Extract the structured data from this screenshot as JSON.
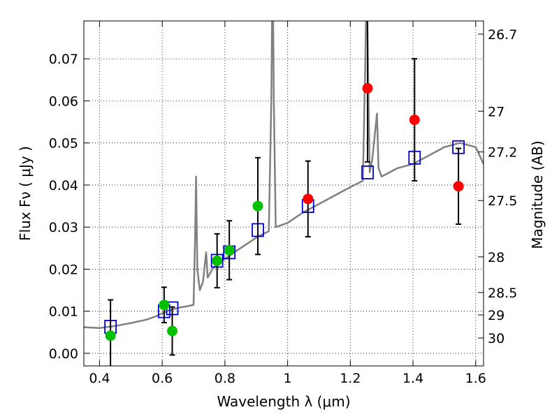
{
  "chart_data": {
    "type": "scatter",
    "title": "",
    "xlabel": "Wavelength  λ (μm)",
    "ylabel": "Flux  Fν  ( μJy )",
    "ylabel_right": "Magnitude (AB)",
    "xlim": [
      0.35,
      1.625
    ],
    "ylim": [
      -0.003,
      0.079
    ],
    "grid": true,
    "x_ticks": [
      0.4,
      0.6,
      0.8,
      1.0,
      1.2,
      1.4,
      1.6
    ],
    "x_tick_labels": [
      "0.4",
      "0.6",
      "0.8",
      "1",
      "1.2",
      "1.4",
      "1.6"
    ],
    "y_ticks": [
      0.0,
      0.01,
      0.02,
      0.03,
      0.04,
      0.05,
      0.06,
      0.07
    ],
    "y_tick_labels": [
      "0.00",
      "0.01",
      "0.02",
      "0.03",
      "0.04",
      "0.05",
      "0.06",
      "0.07"
    ],
    "right_ticks": [
      {
        "label": "26.7",
        "mag": 26.7
      },
      {
        "label": "27",
        "mag": 27.0
      },
      {
        "label": "27.2",
        "mag": 27.2
      },
      {
        "label": "27.5",
        "mag": 27.5
      },
      {
        "label": "28",
        "mag": 28.0
      },
      {
        "label": "28.5",
        "mag": 28.5
      },
      {
        "label": "29",
        "mag": 29.0
      },
      {
        "label": "30",
        "mag": 30.0
      }
    ],
    "colors": {
      "spectrum": "#808080",
      "observed_optical": "#00c000",
      "observed_nir": "#ff0000",
      "model": "#0000cc",
      "errorbar": "#000000"
    },
    "series": [
      {
        "marker": "circle",
        "color": "#00c000",
        "x": [
          0.435,
          0.606,
          0.632,
          0.775,
          0.814,
          0.905
        ],
        "y": [
          0.0042,
          0.0115,
          0.0053,
          0.022,
          0.0245,
          0.035
        ],
        "yerr": [
          0.0085,
          0.0042,
          0.0057,
          0.0064,
          0.007,
          0.0115
        ]
      },
      {
        "marker": "circle",
        "color": "#ff0000",
        "x": [
          1.065,
          1.255,
          1.405,
          1.545
        ],
        "y": [
          0.0367,
          0.063,
          0.0555,
          0.0397
        ],
        "yerr": [
          0.009,
          0.0175,
          0.0145,
          0.009
        ]
      },
      {
        "marker": "square-open",
        "color": "#0000cc",
        "x": [
          0.435,
          0.606,
          0.632,
          0.775,
          0.814,
          0.905,
          1.065,
          1.255,
          1.405,
          1.545
        ],
        "y": [
          0.0063,
          0.01,
          0.0107,
          0.022,
          0.024,
          0.0293,
          0.035,
          0.043,
          0.0465,
          0.049
        ]
      }
    ],
    "spectrum": {
      "color": "#808080",
      "points": [
        [
          0.35,
          0.0062
        ],
        [
          0.4,
          0.006
        ],
        [
          0.45,
          0.0065
        ],
        [
          0.5,
          0.0072
        ],
        [
          0.55,
          0.008
        ],
        [
          0.58,
          0.0088
        ],
        [
          0.6,
          0.0095
        ],
        [
          0.62,
          0.0102
        ],
        [
          0.65,
          0.0108
        ],
        [
          0.68,
          0.0112
        ],
        [
          0.7,
          0.0115
        ],
        [
          0.705,
          0.028
        ],
        [
          0.708,
          0.042
        ],
        [
          0.712,
          0.02
        ],
        [
          0.72,
          0.015
        ],
        [
          0.73,
          0.017
        ],
        [
          0.74,
          0.024
        ],
        [
          0.745,
          0.018
        ],
        [
          0.76,
          0.02
        ],
        [
          0.78,
          0.0215
        ],
        [
          0.8,
          0.0225
        ],
        [
          0.82,
          0.0235
        ],
        [
          0.84,
          0.0245
        ],
        [
          0.86,
          0.0255
        ],
        [
          0.88,
          0.0265
        ],
        [
          0.9,
          0.0275
        ],
        [
          0.92,
          0.0283
        ],
        [
          0.94,
          0.029
        ],
        [
          0.948,
          0.06
        ],
        [
          0.952,
          0.095
        ],
        [
          0.956,
          0.06
        ],
        [
          0.962,
          0.03
        ],
        [
          1.0,
          0.031
        ],
        [
          1.05,
          0.0335
        ],
        [
          1.1,
          0.0355
        ],
        [
          1.15,
          0.0375
        ],
        [
          1.2,
          0.0395
        ],
        [
          1.24,
          0.041
        ],
        [
          1.248,
          0.07
        ],
        [
          1.252,
          0.09
        ],
        [
          1.256,
          0.07
        ],
        [
          1.262,
          0.043
        ],
        [
          1.27,
          0.046
        ],
        [
          1.285,
          0.057
        ],
        [
          1.29,
          0.044
        ],
        [
          1.3,
          0.042
        ],
        [
          1.35,
          0.044
        ],
        [
          1.4,
          0.045
        ],
        [
          1.45,
          0.047
        ],
        [
          1.5,
          0.049
        ],
        [
          1.55,
          0.05
        ],
        [
          1.6,
          0.049
        ],
        [
          1.625,
          0.045
        ]
      ]
    }
  }
}
